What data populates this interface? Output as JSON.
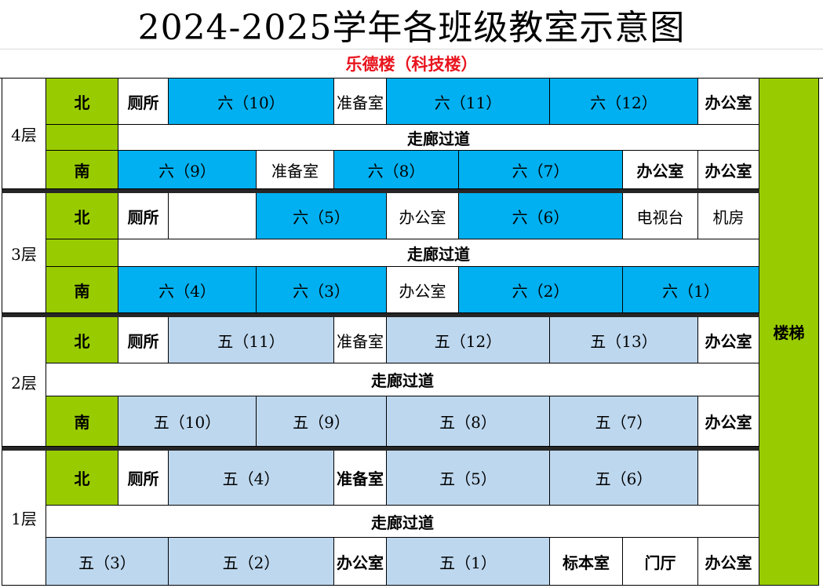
{
  "title": "2024-2025学年各班级教室示意图",
  "subtitle": "乐德楼（科技楼）",
  "stairs": "楼梯",
  "floors": {
    "f4": {
      "label": "4层",
      "north_label": "北",
      "south_label": "南",
      "corridor": "走廊过道",
      "north": [
        "厕所",
        "六（10）",
        "准备室",
        "六（11）",
        "六（12）",
        "办公室"
      ],
      "south": [
        "六（9）",
        "准备室",
        "六（8）",
        "六（7）",
        "办公室",
        "办公室"
      ]
    },
    "f3": {
      "label": "3层",
      "north_label": "北",
      "south_label": "南",
      "corridor": "走廊过道",
      "north": [
        "厕所",
        "",
        "六（5）",
        "办公室",
        "六（6）",
        "电视台",
        "机房"
      ],
      "south": [
        "六（4）",
        "六（3）",
        "办公室",
        "六（2）",
        "六（1）"
      ]
    },
    "f2": {
      "label": "2层",
      "north_label": "北",
      "south_label": "南",
      "corridor": "走廊过道",
      "north": [
        "厕所",
        "五（11）",
        "准备室",
        "五（12）",
        "五（13）",
        "办公室"
      ],
      "south": [
        "五（10）",
        "五（9）",
        "五（8）",
        "五（7）",
        "办公室"
      ]
    },
    "f1": {
      "label": "1层",
      "north_label": "北",
      "corridor": "走廊过道",
      "north": [
        "厕所",
        "五（4）",
        "准备室",
        "五（5）",
        "五（6）",
        ""
      ],
      "south": [
        "五（3）",
        "五（2）",
        "办公室",
        "五（1）",
        "标本室",
        "门厅",
        "办公室"
      ]
    }
  },
  "colors": {
    "direction_and_stairs": "#99cc00",
    "grade6_rooms": "#00b0f0",
    "grade5_rooms": "#bdd7ee",
    "title_subtitle": "#e8141e",
    "floor_separator": "#262626"
  }
}
